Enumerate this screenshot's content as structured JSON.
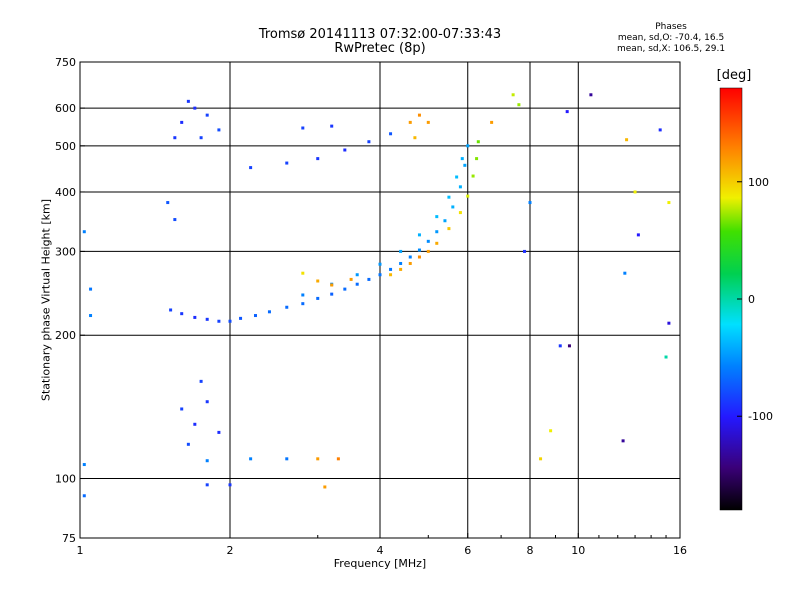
{
  "header": {
    "title_line1": "Tromsø 20141113 07:32:00-07:33:43",
    "title_line2": "RwPretec (8p)"
  },
  "stats": {
    "heading": "Phases",
    "line_o": "mean, sd,O: -70.4, 16.5",
    "line_x": "mean, sd,X: 106.5, 29.1"
  },
  "colorbar": {
    "label": "[deg]",
    "range": [
      -180,
      180
    ],
    "ticks": [
      {
        "value": 100,
        "label": "100"
      },
      {
        "value": 0,
        "label": "0"
      },
      {
        "value": -100,
        "label": "-100"
      }
    ]
  },
  "chart_data": {
    "type": "scatter",
    "title": "Tromsø 20141113 07:32:00-07:33:43",
    "subtitle": "RwPretec (8p)",
    "xlabel": "Frequency [MHz]",
    "ylabel": "Stationary phase Virtual Height [km]",
    "xscale": "log",
    "yscale": "log",
    "xlim": [
      1,
      16
    ],
    "ylim": [
      75,
      750
    ],
    "xticks": [
      {
        "value": 1,
        "label": "1"
      },
      {
        "value": 2,
        "label": "2"
      },
      {
        "value": 4,
        "label": "4"
      },
      {
        "value": 6,
        "label": "6"
      },
      {
        "value": 8,
        "label": "8"
      },
      {
        "value": 10,
        "label": "10"
      },
      {
        "value": 16,
        "label": "16"
      }
    ],
    "yticks": [
      {
        "value": 75,
        "label": "75"
      },
      {
        "value": 100,
        "label": "100"
      },
      {
        "value": 200,
        "label": "200"
      },
      {
        "value": 300,
        "label": "300"
      },
      {
        "value": 400,
        "label": "400"
      },
      {
        "value": 500,
        "label": "500"
      },
      {
        "value": 600,
        "label": "600"
      },
      {
        "value": 750,
        "label": "750"
      }
    ],
    "xgrid": [
      2,
      4,
      6,
      8,
      10
    ],
    "ygrid": [
      100,
      200,
      300,
      400,
      500,
      600
    ],
    "grid": true,
    "color_variable": "Phase [deg]",
    "color_range": [
      -180,
      180
    ],
    "points": [
      [
        1.52,
        226,
        -90
      ],
      [
        1.6,
        222,
        -95
      ],
      [
        1.7,
        218,
        -100
      ],
      [
        1.8,
        216,
        -95
      ],
      [
        1.9,
        214,
        -90
      ],
      [
        2.0,
        214,
        -85
      ],
      [
        2.1,
        217,
        -80
      ],
      [
        2.25,
        220,
        -75
      ],
      [
        2.4,
        224,
        -70
      ],
      [
        2.6,
        229,
        -70
      ],
      [
        2.8,
        233,
        -70
      ],
      [
        3.0,
        239,
        -70
      ],
      [
        3.2,
        244,
        -75
      ],
      [
        3.4,
        250,
        -70
      ],
      [
        3.6,
        256,
        -70
      ],
      [
        3.8,
        262,
        -70
      ],
      [
        4.0,
        268,
        -65
      ],
      [
        4.2,
        275,
        -65
      ],
      [
        4.4,
        283,
        -60
      ],
      [
        4.6,
        292,
        -60
      ],
      [
        4.8,
        302,
        -55
      ],
      [
        5.0,
        315,
        -55
      ],
      [
        5.2,
        330,
        -50
      ],
      [
        5.4,
        348,
        -45
      ],
      [
        5.6,
        372,
        -40
      ],
      [
        5.8,
        410,
        -40
      ],
      [
        5.92,
        455,
        -45
      ],
      [
        6.0,
        500,
        -45
      ],
      [
        2.8,
        243,
        -60
      ],
      [
        3.2,
        256,
        -55
      ],
      [
        3.6,
        268,
        -50
      ],
      [
        4.0,
        282,
        -50
      ],
      [
        4.4,
        300,
        -45
      ],
      [
        4.8,
        325,
        -40
      ],
      [
        5.2,
        355,
        -35
      ],
      [
        5.5,
        390,
        -35
      ],
      [
        5.7,
        430,
        -35
      ],
      [
        5.85,
        470,
        -40
      ],
      [
        4.2,
        268,
        120
      ],
      [
        4.4,
        275,
        125
      ],
      [
        4.6,
        283,
        130
      ],
      [
        4.8,
        292,
        135
      ],
      [
        5.0,
        300,
        130
      ],
      [
        5.2,
        312,
        125
      ],
      [
        5.5,
        335,
        115
      ],
      [
        5.8,
        362,
        105
      ],
      [
        6.0,
        392,
        95
      ],
      [
        6.15,
        432,
        80
      ],
      [
        6.25,
        470,
        75
      ],
      [
        6.3,
        510,
        70
      ],
      [
        3.0,
        260,
        125
      ],
      [
        3.2,
        255,
        130
      ],
      [
        3.5,
        262,
        130
      ],
      [
        2.8,
        270,
        105
      ],
      [
        1.55,
        520,
        -95
      ],
      [
        1.6,
        560,
        -100
      ],
      [
        1.7,
        600,
        -100
      ],
      [
        1.8,
        580,
        -90
      ],
      [
        1.9,
        540,
        -85
      ],
      [
        1.65,
        620,
        -95
      ],
      [
        1.75,
        520,
        -90
      ],
      [
        2.2,
        450,
        -90
      ],
      [
        2.6,
        460,
        -90
      ],
      [
        3.0,
        470,
        -95
      ],
      [
        3.4,
        490,
        -100
      ],
      [
        3.8,
        510,
        -90
      ],
      [
        4.2,
        530,
        -80
      ],
      [
        3.2,
        550,
        -95
      ],
      [
        2.8,
        545,
        -90
      ],
      [
        4.6,
        560,
        130
      ],
      [
        4.8,
        580,
        135
      ],
      [
        5.0,
        560,
        130
      ],
      [
        4.7,
        520,
        120
      ],
      [
        1.5,
        380,
        -80
      ],
      [
        1.55,
        350,
        -85
      ],
      [
        1.6,
        140,
        -90
      ],
      [
        1.7,
        130,
        -100
      ],
      [
        1.8,
        145,
        -95
      ],
      [
        1.9,
        125,
        -100
      ],
      [
        1.65,
        118,
        -85
      ],
      [
        1.75,
        160,
        -90
      ],
      [
        1.8,
        109,
        -60
      ],
      [
        2.2,
        110,
        -60
      ],
      [
        2.6,
        110,
        -65
      ],
      [
        3.0,
        110,
        130
      ],
      [
        3.3,
        110,
        140
      ],
      [
        1.8,
        97,
        -90
      ],
      [
        2.0,
        97,
        -95
      ],
      [
        3.1,
        96,
        130
      ],
      [
        1.02,
        92,
        -70
      ],
      [
        1.02,
        107,
        -60
      ],
      [
        1.05,
        220,
        -60
      ],
      [
        1.05,
        250,
        -65
      ],
      [
        1.02,
        330,
        -60
      ],
      [
        7.4,
        640,
        90
      ],
      [
        7.6,
        610,
        80
      ],
      [
        6.7,
        560,
        130
      ],
      [
        8.0,
        380,
        -60
      ],
      [
        7.8,
        300,
        -100
      ],
      [
        9.5,
        590,
        -110
      ],
      [
        10.6,
        640,
        -140
      ],
      [
        12.5,
        515,
        120
      ],
      [
        13.0,
        400,
        100
      ],
      [
        13.2,
        325,
        -110
      ],
      [
        12.4,
        270,
        -60
      ],
      [
        14.6,
        540,
        -100
      ],
      [
        15.2,
        380,
        100
      ],
      [
        15.2,
        212,
        -120
      ],
      [
        15.0,
        180,
        0
      ],
      [
        9.6,
        190,
        -150
      ],
      [
        12.3,
        120,
        -140
      ],
      [
        8.4,
        110,
        110
      ],
      [
        8.8,
        126,
        100
      ],
      [
        9.2,
        190,
        -95
      ]
    ]
  }
}
